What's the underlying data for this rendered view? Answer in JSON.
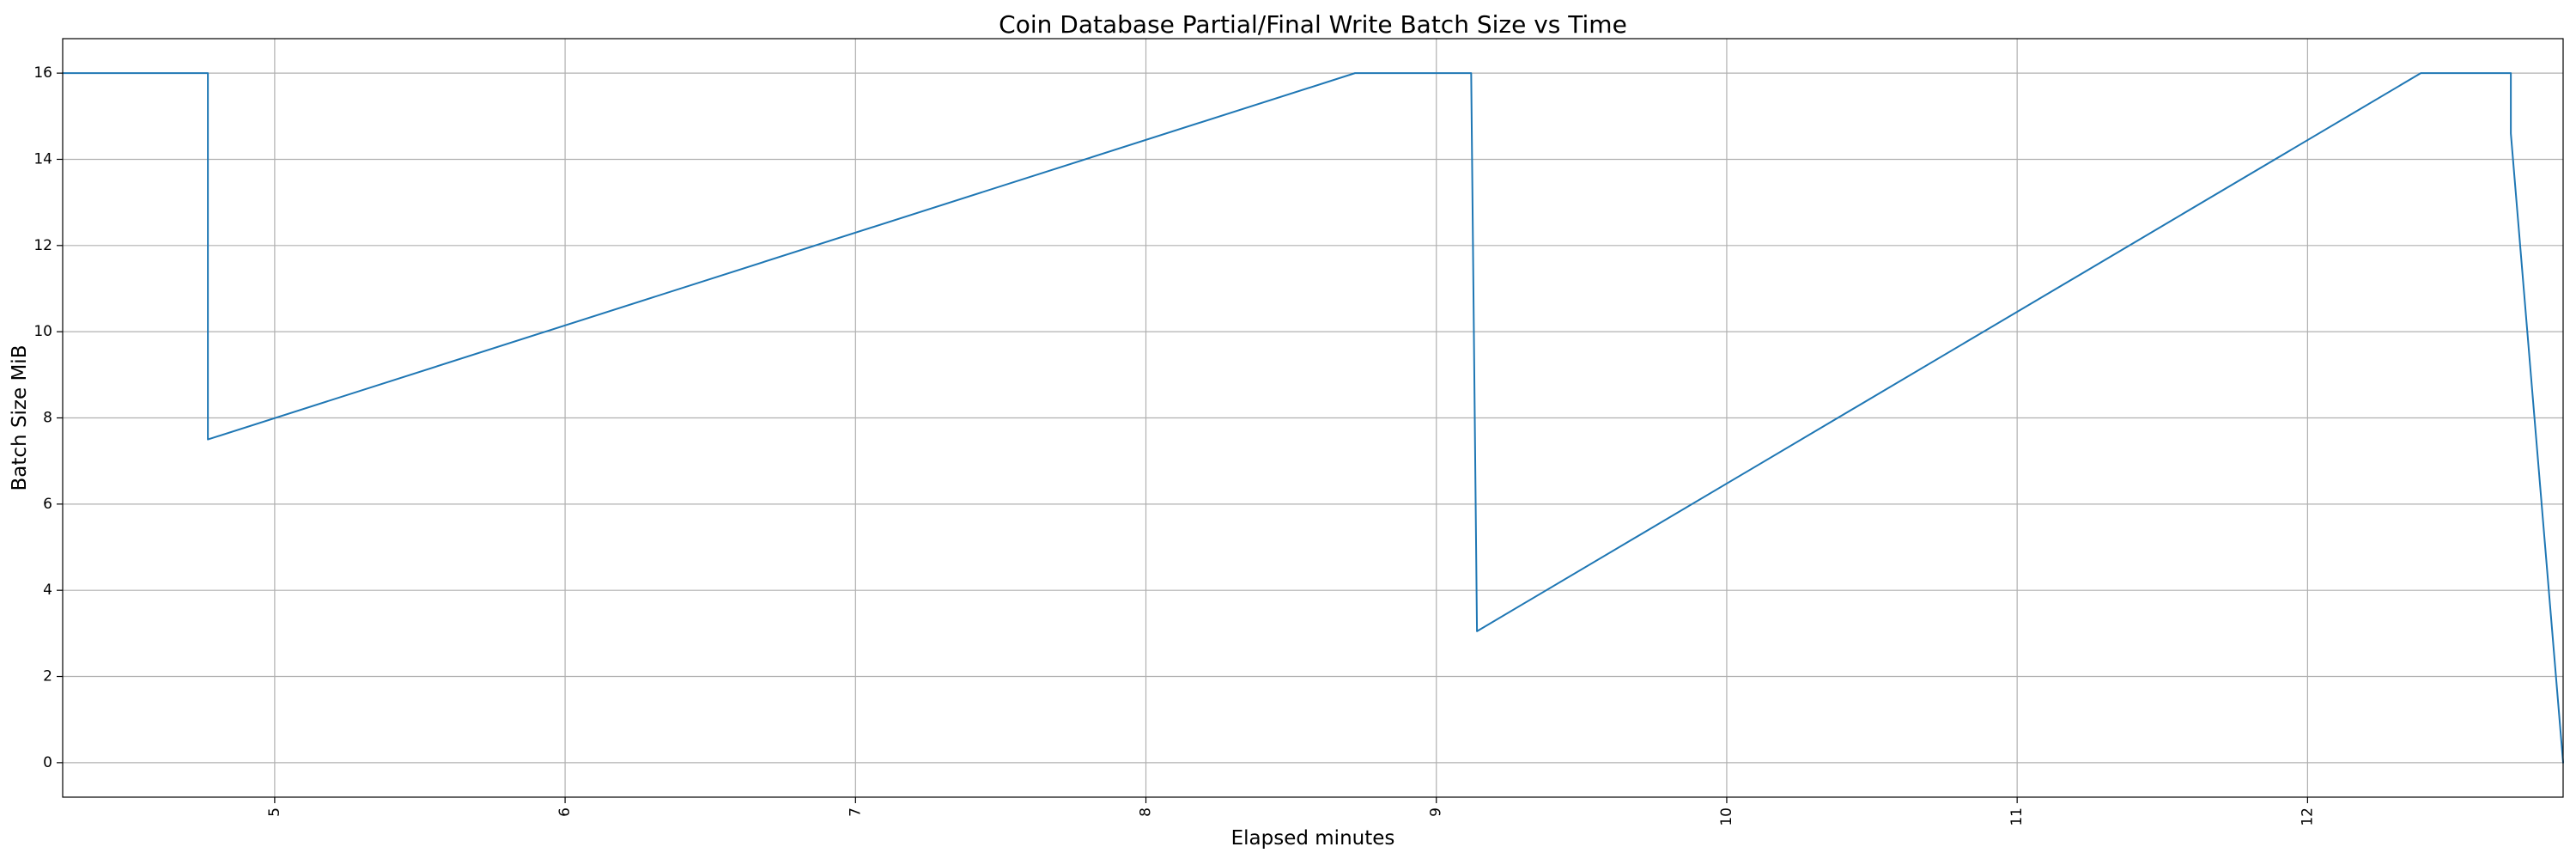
{
  "chart_data": {
    "type": "line",
    "title": "Coin Database Partial/Final Write Batch Size vs Time",
    "xlabel": "Elapsed minutes",
    "ylabel": "Batch Size MiB",
    "xlim": [
      4.27,
      12.88
    ],
    "ylim": [
      -0.8,
      16.8
    ],
    "xticks": [
      5,
      6,
      7,
      8,
      9,
      10,
      11,
      12
    ],
    "yticks": [
      0,
      2,
      4,
      6,
      8,
      10,
      12,
      14,
      16
    ],
    "xtick_rotation": 90,
    "grid": true,
    "series": [
      {
        "color": "#1f77b4",
        "x": [
          4.27,
          4.77,
          4.77,
          8.72,
          9.12,
          9.14,
          12.39,
          12.7,
          12.7,
          12.88
        ],
        "y": [
          16,
          16,
          7.5,
          16,
          16,
          3.05,
          16,
          16,
          14.6,
          0
        ]
      }
    ]
  }
}
